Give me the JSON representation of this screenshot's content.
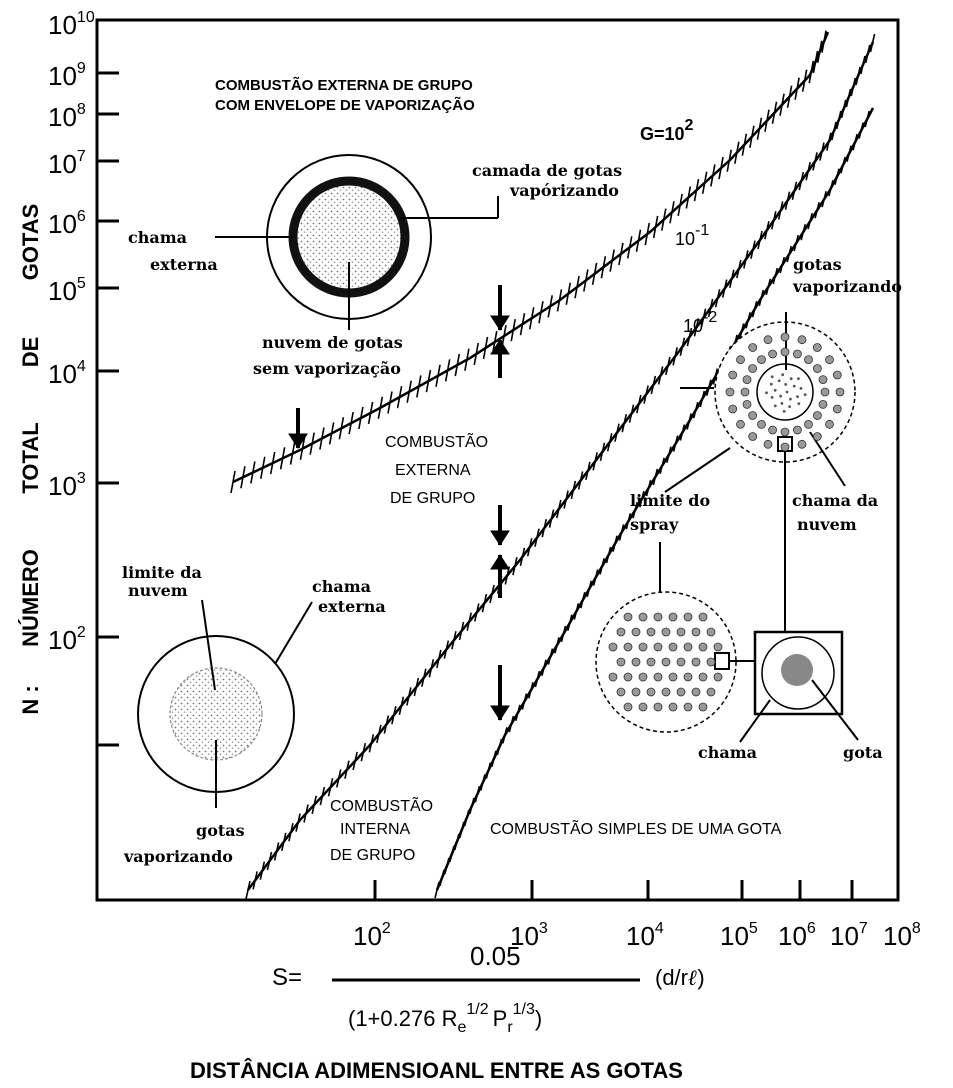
{
  "axes": {
    "y_title": "N :   NÚMERO   TOTAL   DE   GOTAS",
    "y_title_parts": [
      "N :",
      "NÚMERO",
      "TOTAL",
      "DE",
      "GOTAS"
    ],
    "y_ticks": [
      {
        "base": "10",
        "exp": "10"
      },
      {
        "base": "10",
        "exp": "9"
      },
      {
        "base": "10",
        "exp": "8"
      },
      {
        "base": "10",
        "exp": "7"
      },
      {
        "base": "10",
        "exp": "6"
      },
      {
        "base": "10",
        "exp": "5"
      },
      {
        "base": "10",
        "exp": "4"
      },
      {
        "base": "10",
        "exp": "3"
      },
      {
        "base": "10",
        "exp": "2"
      }
    ],
    "x_ticks": [
      {
        "base": "10",
        "exp": "2"
      },
      {
        "base": "10",
        "exp": "3"
      },
      {
        "base": "10",
        "exp": "4"
      },
      {
        "base": "10",
        "exp": "5"
      },
      {
        "base": "10",
        "exp": "6"
      },
      {
        "base": "10",
        "exp": "7"
      },
      {
        "base": "10",
        "exp": "8"
      }
    ],
    "x_formula": {
      "lhs": "S=",
      "numerator": "0.05",
      "denominator": "(1+0.276  R",
      "re_sub": "e",
      "re_sup": "1/2",
      "pr": "P",
      "pr_sub": "r",
      "pr_sup": "1/3",
      "close": ")",
      "factor": "(d/r",
      "factor_end": ")"
    },
    "x_title": "DISTÂNCIA    ADIMENSIOANL   ENTRE   AS   GOTAS"
  },
  "curves": {
    "g_label": "G=10",
    "g_exp": "2",
    "g2_label": "10",
    "g2_exp": "-1",
    "g3_label": "10",
    "g3_exp": "-2"
  },
  "regions": {
    "top_title_1": "COMBUSTÃO EXTERNA DE GRUPO",
    "top_title_2": "COM ENVELOPE DE VAPORIZAÇÃO",
    "mid_1": "COMBUSTÃO",
    "mid_2": "EXTERNA",
    "mid_3": "DE GRUPO",
    "int_1": "COMBUSTÃO",
    "int_2": "INTERNA",
    "int_3": "DE GRUPO",
    "simple": "COMBUSTÃO  SIMPLES  DE UMA GOTA"
  },
  "annotations": {
    "camada_1": "camada de gotas",
    "camada_2": "vapórizando",
    "chama_ext_1": "chama",
    "chama_ext_2": "externa",
    "nuvem_sem_1": "nuvem de gotas",
    "nuvem_sem_2": "sem vaporização",
    "gotas_vap_1": "gotas",
    "gotas_vap_2": "vaporizando",
    "limite_nuvem_1": "limite da",
    "limite_nuvem_2": "nuvem",
    "chama_ext2_1": "chama",
    "chama_ext2_2": "externa",
    "gotas_vap_b1": "gotas",
    "gotas_vap_b2": "vaporizando",
    "limite_spray_1": "limite do",
    "limite_spray_2": "spray",
    "chama_nuvem_1": "chama da",
    "chama_nuvem_2": "nuvem",
    "chama": "chama",
    "gota": "gota"
  }
}
